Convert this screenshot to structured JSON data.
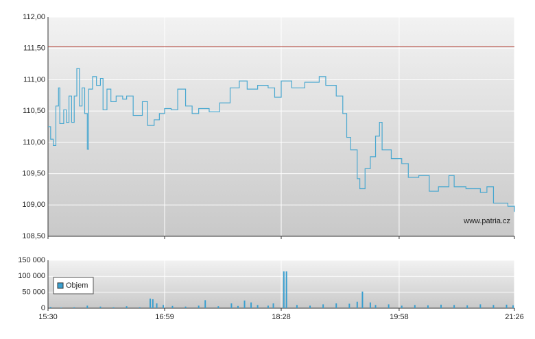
{
  "chart_data": [
    {
      "type": "line",
      "annotation": "www.patria.cz",
      "color": "#4aa8d0",
      "reference_line": 111.53,
      "reference_color": "#b03a2e",
      "grid": true,
      "xlim": [
        "15:30",
        "21:26"
      ],
      "ylim": [
        108.5,
        112
      ],
      "yticks": [
        {
          "value": 108.5,
          "label": "108,50"
        },
        {
          "value": 109,
          "label": "109,00"
        },
        {
          "value": 109.5,
          "label": "109,50"
        },
        {
          "value": 110,
          "label": "110,00"
        },
        {
          "value": 110.5,
          "label": "110,50"
        },
        {
          "value": 111,
          "label": "111,00"
        },
        {
          "value": 111.5,
          "label": "111,50"
        },
        {
          "value": 112,
          "label": "112,00"
        }
      ],
      "x": [
        "15:30",
        "15:32",
        "15:34",
        "15:36",
        "15:38",
        "15:39",
        "15:42",
        "15:44",
        "15:46",
        "15:48",
        "15:50",
        "15:52",
        "15:54",
        "15:56",
        "15:58",
        "16:00",
        "16:01",
        "16:04",
        "16:07",
        "16:10",
        "16:12",
        "16:15",
        "16:18",
        "16:22",
        "16:27",
        "16:30",
        "16:35",
        "16:42",
        "16:46",
        "16:51",
        "16:55",
        "16:59",
        "17:04",
        "17:09",
        "17:15",
        "17:20",
        "17:25",
        "17:33",
        "17:41",
        "17:49",
        "17:56",
        "18:02",
        "18:10",
        "18:18",
        "18:23",
        "18:28",
        "18:36",
        "18:46",
        "18:57",
        "19:02",
        "19:10",
        "19:15",
        "19:18",
        "19:21",
        "19:26",
        "19:28",
        "19:32",
        "19:36",
        "19:40",
        "19:43",
        "19:45",
        "19:52",
        "20:00",
        "20:05",
        "20:13",
        "20:21",
        "20:28",
        "20:36",
        "20:40",
        "20:49",
        "21:00",
        "21:05",
        "21:10",
        "21:21",
        "21:26"
      ],
      "values": [
        110.25,
        110.05,
        109.95,
        110.58,
        110.87,
        110.3,
        110.52,
        110.32,
        110.74,
        110.32,
        110.74,
        111.18,
        110.58,
        110.87,
        110.46,
        109.89,
        110.85,
        111.05,
        110.91,
        111.02,
        110.52,
        110.85,
        110.65,
        110.74,
        110.69,
        110.74,
        110.43,
        110.65,
        110.27,
        110.36,
        110.46,
        110.54,
        110.52,
        110.85,
        110.58,
        110.46,
        110.54,
        110.49,
        110.63,
        110.87,
        110.98,
        110.85,
        110.91,
        110.87,
        110.72,
        110.98,
        110.87,
        110.96,
        111.05,
        110.91,
        110.74,
        110.46,
        110.08,
        109.88,
        109.42,
        109.26,
        109.58,
        109.77,
        110.1,
        110.32,
        109.88,
        109.74,
        109.66,
        109.44,
        109.47,
        109.22,
        109.29,
        109.47,
        109.29,
        109.26,
        109.2,
        109.29,
        109.03,
        108.98,
        108.89
      ]
    },
    {
      "type": "bar",
      "color": "#3a9fcf",
      "legend": "left",
      "grid": true,
      "series_name": "Objem",
      "xlim": [
        "15:30",
        "21:26"
      ],
      "xticks": [
        "15:30",
        "16:59",
        "18:28",
        "19:58",
        "21:26"
      ],
      "ylim": [
        0,
        150000
      ],
      "yticks": [
        0,
        {
          "value": 50000,
          "label": "50 000"
        },
        {
          "value": 100000,
          "label": "100 000"
        },
        {
          "value": 150000,
          "label": "150 000"
        }
      ],
      "x": [
        "15:32",
        "15:40",
        "15:50",
        "16:00",
        "16:10",
        "16:20",
        "16:30",
        "16:40",
        "16:48",
        "16:50",
        "16:53",
        "16:58",
        "17:05",
        "17:15",
        "17:25",
        "17:30",
        "17:40",
        "17:50",
        "17:55",
        "18:00",
        "18:05",
        "18:10",
        "18:18",
        "18:22",
        "18:30",
        "18:32",
        "18:40",
        "18:50",
        "19:00",
        "19:10",
        "19:20",
        "19:26",
        "19:30",
        "19:36",
        "19:40",
        "19:50",
        "20:00",
        "20:10",
        "20:20",
        "20:30",
        "20:40",
        "20:50",
        "21:00",
        "21:10",
        "21:20",
        "21:25"
      ],
      "values": [
        4000,
        2000,
        3000,
        8000,
        5000,
        3000,
        6000,
        3000,
        30000,
        28000,
        15000,
        10000,
        7000,
        5000,
        8000,
        25000,
        6000,
        15000,
        7000,
        24000,
        18000,
        10000,
        8000,
        15000,
        115000,
        115000,
        10000,
        8000,
        12000,
        15000,
        14000,
        20000,
        52000,
        18000,
        10000,
        12000,
        8000,
        10000,
        9000,
        11000,
        10000,
        9000,
        12000,
        10000,
        11000,
        9000
      ]
    }
  ]
}
